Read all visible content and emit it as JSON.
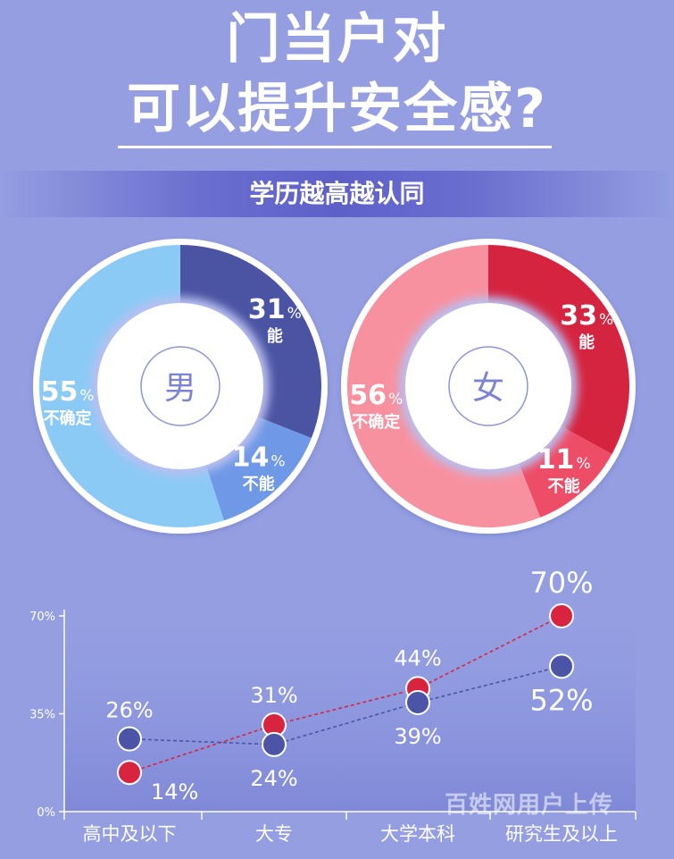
{
  "title_line1": "门当户对",
  "title_line2": "可以提升安全感?",
  "subtitle": "学历越高越认同",
  "watermark": "百姓网用户上传",
  "colors": {
    "male_yes": "#4b54a3",
    "male_no": "#6f98e6",
    "male_unsure": "#8ccaf6",
    "female_yes": "#d52440",
    "female_no": "#ee4d67",
    "female_unsure": "#f8919f",
    "series_red": "#d8243f",
    "series_blue": "#4b54a6"
  },
  "chart_data": [
    {
      "type": "pie",
      "center_label": "男",
      "slices": [
        {
          "label": "能",
          "value": 31,
          "display": "31"
        },
        {
          "label": "不能",
          "value": 14,
          "display": "14"
        },
        {
          "label": "不确定",
          "value": 55,
          "display": "55"
        }
      ],
      "unit": "%"
    },
    {
      "type": "pie",
      "center_label": "女",
      "slices": [
        {
          "label": "能",
          "value": 33,
          "display": "33"
        },
        {
          "label": "不能",
          "value": 11,
          "display": "11"
        },
        {
          "label": "不确定",
          "value": 56,
          "display": "56"
        }
      ],
      "unit": "%"
    },
    {
      "type": "line",
      "categories": [
        "高中及以下",
        "大专",
        "大学本科",
        "研究生及以上"
      ],
      "series": [
        {
          "values": [
            14,
            31,
            44,
            70
          ],
          "labels": [
            "14%",
            "31%",
            "44%",
            "70%"
          ]
        },
        {
          "values": [
            26,
            24,
            39,
            52
          ],
          "labels": [
            "26%",
            "24%",
            "39%",
            "52%"
          ]
        }
      ],
      "yticks": [
        "0%",
        "35%",
        "70%"
      ],
      "ylim": [
        0,
        70
      ]
    }
  ]
}
